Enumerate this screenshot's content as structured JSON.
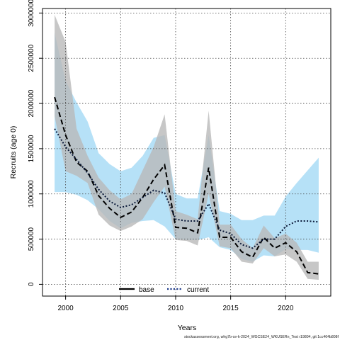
{
  "chart_data": {
    "type": "line",
    "title": "",
    "xlabel": "Years",
    "ylabel": "Recruits (age 0)",
    "xlim": [
      1997.9,
      2024.1
    ],
    "ylim": [
      -130000,
      3050000
    ],
    "x_ticks": [
      2000,
      2005,
      2010,
      2015,
      2020
    ],
    "y_ticks": [
      0,
      500000,
      1000000,
      1500000,
      2000000,
      2500000,
      3000000
    ],
    "grid": true,
    "legend_position": "bottom-center",
    "years": [
      1999,
      2000,
      2001,
      2002,
      2003,
      2004,
      2005,
      2006,
      2007,
      2008,
      2009,
      2010,
      2011,
      2012,
      2013,
      2014,
      2015,
      2016,
      2017,
      2018,
      2019,
      2020,
      2021,
      2022,
      2023
    ],
    "series": [
      {
        "name": "base",
        "line_style": "dashed",
        "color": "#000000",
        "band_color": "#b9b9b9",
        "values": [
          2070000,
          1650000,
          1350000,
          1250000,
          980000,
          840000,
          740000,
          800000,
          960000,
          1160000,
          1320000,
          630000,
          620000,
          570000,
          1290000,
          520000,
          520000,
          360000,
          300000,
          520000,
          400000,
          460000,
          360000,
          130000,
          115000
        ],
        "lower": [
          1860000,
          1250000,
          1200000,
          1120000,
          770000,
          650000,
          590000,
          640000,
          720000,
          910000,
          1080000,
          490000,
          480000,
          430000,
          1000000,
          420000,
          400000,
          250000,
          230000,
          400000,
          310000,
          330000,
          250000,
          60000,
          50000
        ],
        "upper": [
          2980000,
          2680000,
          1720000,
          1420000,
          1180000,
          1040000,
          940000,
          1000000,
          1260000,
          1520000,
          1880000,
          810000,
          770000,
          720000,
          1920000,
          660000,
          660000,
          500000,
          400000,
          650000,
          510000,
          560000,
          460000,
          250000,
          250000
        ]
      },
      {
        "name": "current",
        "line_style": "dotted",
        "color": "#000000",
        "band_color": "#8fd1f2",
        "values": [
          1720000,
          1520000,
          1380000,
          1230000,
          1050000,
          920000,
          850000,
          880000,
          960000,
          1040000,
          1010000,
          720000,
          700000,
          700000,
          890000,
          600000,
          560000,
          440000,
          400000,
          500000,
          500000,
          640000,
          700000,
          700000,
          690000
        ],
        "lower": [
          1020000,
          1020000,
          990000,
          930000,
          830000,
          700000,
          620000,
          680000,
          700000,
          710000,
          640000,
          500000,
          490000,
          490000,
          520000,
          410000,
          380000,
          280000,
          250000,
          320000,
          310000,
          390000,
          380000,
          380000,
          350000
        ],
        "upper": [
          2780000,
          2250000,
          2010000,
          1800000,
          1450000,
          1330000,
          1250000,
          1290000,
          1420000,
          1620000,
          1650000,
          1000000,
          950000,
          950000,
          1650000,
          810000,
          780000,
          710000,
          710000,
          760000,
          760000,
          970000,
          1120000,
          1260000,
          1400000
        ]
      }
    ],
    "caption": "stockassessment.org, whg7b-ce-k-2024_WGCSE24_WKUSERn_Test r19804, git 1cc464b808f"
  }
}
